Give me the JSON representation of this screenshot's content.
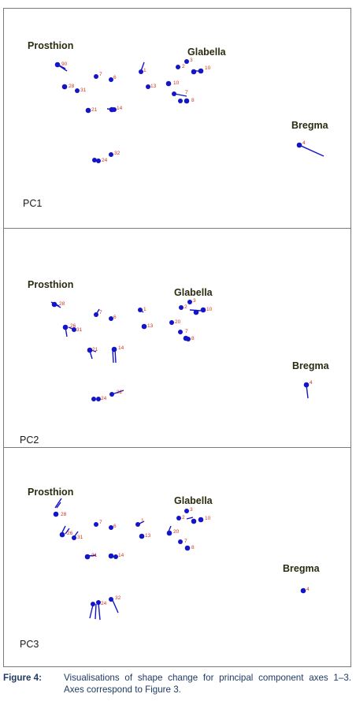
{
  "figure": {
    "panels": [
      {
        "label": "PC1",
        "landmark_labels": {
          "prosthion": "Prosthion",
          "glabella": "Glabella",
          "bregma": "Bregma"
        }
      },
      {
        "label": "PC2",
        "landmark_labels": {
          "prosthion": "Prosthion",
          "glabella": "Glabella",
          "bregma": "Bregma"
        }
      },
      {
        "label": "PC3",
        "landmark_labels": {
          "prosthion": "Prosthion",
          "glabella": "Glabella",
          "bregma": "Bregma"
        }
      }
    ],
    "colors": {
      "landmark": "#1414c8",
      "vector": "#1414c8",
      "number": "#d4321c"
    },
    "caption": {
      "figure_label": "Figure 4:",
      "text": "Visualisations of shape change for principal component axes 1–3. Axes correspond to Figure 3."
    }
  }
}
